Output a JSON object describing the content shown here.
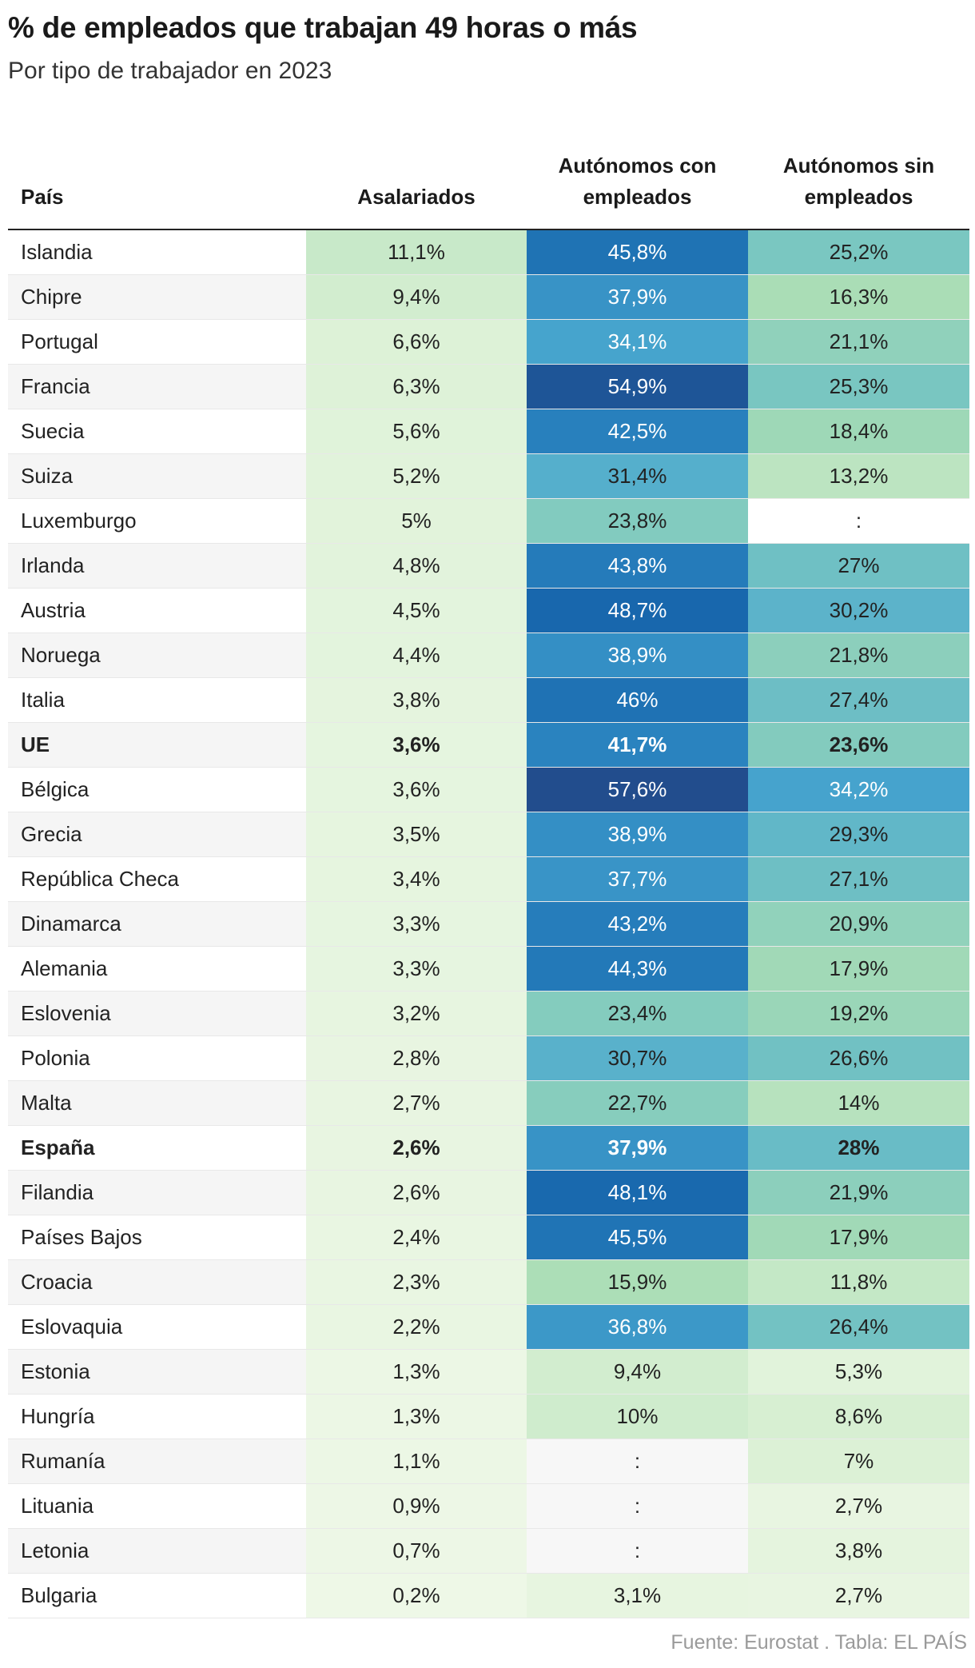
{
  "title": "% de empleados que trabajan 49 horas o más",
  "subtitle": "Por tipo de trabajador en 2023",
  "source": "Fuente: Eurostat . Tabla: EL PAÍS",
  "chart_data": {
    "type": "table",
    "columns": [
      "País",
      "Asalariados",
      "Autónomos con empleados",
      "Autónomos sin empleados"
    ],
    "rows": [
      {
        "country": "Islandia",
        "values": [
          "11,1%",
          "45,8%",
          "25,2%"
        ],
        "bold": false
      },
      {
        "country": "Chipre",
        "values": [
          "9,4%",
          "37,9%",
          "16,3%"
        ],
        "bold": false
      },
      {
        "country": "Portugal",
        "values": [
          "6,6%",
          "34,1%",
          "21,1%"
        ],
        "bold": false
      },
      {
        "country": "Francia",
        "values": [
          "6,3%",
          "54,9%",
          "25,3%"
        ],
        "bold": false
      },
      {
        "country": "Suecia",
        "values": [
          "5,6%",
          "42,5%",
          "18,4%"
        ],
        "bold": false
      },
      {
        "country": "Suiza",
        "values": [
          "5,2%",
          "31,4%",
          "13,2%"
        ],
        "bold": false
      },
      {
        "country": "Luxemburgo",
        "values": [
          "5%",
          "23,8%",
          ":"
        ],
        "bold": false
      },
      {
        "country": "Irlanda",
        "values": [
          "4,8%",
          "43,8%",
          "27%"
        ],
        "bold": false
      },
      {
        "country": "Austria",
        "values": [
          "4,5%",
          "48,7%",
          "30,2%"
        ],
        "bold": false
      },
      {
        "country": "Noruega",
        "values": [
          "4,4%",
          "38,9%",
          "21,8%"
        ],
        "bold": false
      },
      {
        "country": "Italia",
        "values": [
          "3,8%",
          "46%",
          "27,4%"
        ],
        "bold": false
      },
      {
        "country": "UE",
        "values": [
          "3,6%",
          "41,7%",
          "23,6%"
        ],
        "bold": true
      },
      {
        "country": "Bélgica",
        "values": [
          "3,6%",
          "57,6%",
          "34,2%"
        ],
        "bold": false
      },
      {
        "country": "Grecia",
        "values": [
          "3,5%",
          "38,9%",
          "29,3%"
        ],
        "bold": false
      },
      {
        "country": "República Checa",
        "values": [
          "3,4%",
          "37,7%",
          "27,1%"
        ],
        "bold": false
      },
      {
        "country": "Dinamarca",
        "values": [
          "3,3%",
          "43,2%",
          "20,9%"
        ],
        "bold": false
      },
      {
        "country": "Alemania",
        "values": [
          "3,3%",
          "44,3%",
          "17,9%"
        ],
        "bold": false
      },
      {
        "country": "Eslovenia",
        "values": [
          "3,2%",
          "23,4%",
          "19,2%"
        ],
        "bold": false
      },
      {
        "country": "Polonia",
        "values": [
          "2,8%",
          "30,7%",
          "26,6%"
        ],
        "bold": false
      },
      {
        "country": "Malta",
        "values": [
          "2,7%",
          "22,7%",
          "14%"
        ],
        "bold": false
      },
      {
        "country": "España",
        "values": [
          "2,6%",
          "37,9%",
          "28%"
        ],
        "bold": true
      },
      {
        "country": "Filandia",
        "values": [
          "2,6%",
          "48,1%",
          "21,9%"
        ],
        "bold": false
      },
      {
        "country": "Países Bajos",
        "values": [
          "2,4%",
          "45,5%",
          "17,9%"
        ],
        "bold": false
      },
      {
        "country": "Croacia",
        "values": [
          "2,3%",
          "15,9%",
          "11,8%"
        ],
        "bold": false
      },
      {
        "country": "Eslovaquia",
        "values": [
          "2,2%",
          "36,8%",
          "26,4%"
        ],
        "bold": false
      },
      {
        "country": "Estonia",
        "values": [
          "1,3%",
          "9,4%",
          "5,3%"
        ],
        "bold": false
      },
      {
        "country": "Hungría",
        "values": [
          "1,3%",
          "10%",
          "8,6%"
        ],
        "bold": false
      },
      {
        "country": "Rumanía",
        "values": [
          "1,1%",
          ":",
          "7%"
        ],
        "bold": false
      },
      {
        "country": "Lituania",
        "values": [
          "0,9%",
          ":",
          "2,7%"
        ],
        "bold": false
      },
      {
        "country": "Letonia",
        "values": [
          "0,7%",
          ":",
          "3,8%"
        ],
        "bold": false
      },
      {
        "country": "Bulgaria",
        "values": [
          "0,2%",
          "3,1%",
          "2,7%"
        ],
        "bold": false
      }
    ],
    "color_scale": {
      "stops": [
        "#eff8e8",
        "#d9f0d3",
        "#a8dcb5",
        "#7cc8c0",
        "#4aa8cf",
        "#2b84c0",
        "#1563aa",
        "#234c8c"
      ],
      "missing_color": "#f7f7f7"
    }
  }
}
